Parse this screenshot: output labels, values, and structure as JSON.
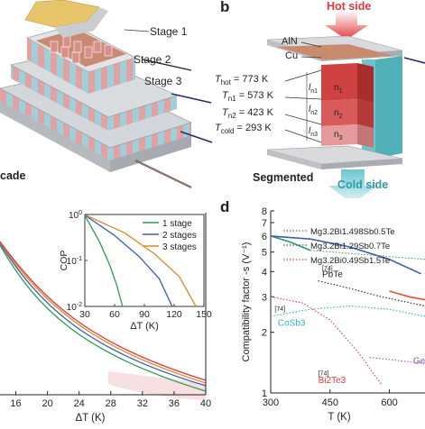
{
  "panel_a": {
    "caption": "cade",
    "stages": [
      "Stage 1",
      "Stage 2",
      "Stage 3"
    ]
  },
  "panel_b": {
    "letter": "b",
    "caption": "Segmented",
    "hot_label": "Hot side",
    "cold_label": "Cold side",
    "layers": [
      "AlN",
      "Cu"
    ],
    "temperatures": [
      {
        "name": "T_hot",
        "value": "773 K"
      },
      {
        "name": "T_n1",
        "value": "573 K"
      },
      {
        "name": "T_n2",
        "value": "423 K"
      },
      {
        "name": "T_cold",
        "value": "293 K"
      }
    ],
    "legs": [
      "n1",
      "n2",
      "n3"
    ],
    "lengths": [
      "l_n1",
      "l_n2",
      "l_n3"
    ]
  },
  "panel_c": {
    "chart_data": {
      "type": "line",
      "xlabel": "ΔT (K)",
      "x_ticks": [
        16,
        20,
        24,
        28,
        32,
        36,
        40
      ],
      "xlim": [
        14,
        40
      ],
      "series": [
        {
          "name": "1 stage",
          "color": "#2e9a57"
        },
        {
          "name": "2 stages",
          "color": "#3c5fb0"
        },
        {
          "name": "3 stages",
          "color": "#d98a24"
        }
      ],
      "inset": {
        "type": "line",
        "xlabel": "ΔT (K)",
        "ylabel": "COP",
        "x_ticks": [
          30,
          60,
          90,
          120,
          150
        ],
        "y_ticks": [
          "10^-2",
          "10^-1",
          "10^0"
        ],
        "ylim_log": [
          0.01,
          1
        ],
        "series": [
          {
            "name": "1 stage",
            "x": [
              30,
              45,
              55,
              62,
              68
            ],
            "y": [
              0.95,
              0.25,
              0.08,
              0.03,
              0.01
            ]
          },
          {
            "name": "2 stages",
            "x": [
              30,
              60,
              85,
              105,
              118
            ],
            "y": [
              0.97,
              0.35,
              0.12,
              0.04,
              0.01
            ]
          },
          {
            "name": "3 stages",
            "x": [
              30,
              70,
              100,
              125,
              142
            ],
            "y": [
              0.98,
              0.4,
              0.14,
              0.045,
              0.01
            ]
          }
        ]
      }
    }
  },
  "panel_d": {
    "letter": "d",
    "chart_data": {
      "type": "line",
      "ylabel": "Compatibility factor -s (V⁻¹)",
      "xlabel": "T (K)",
      "x_ticks": [
        300,
        450,
        600
      ],
      "xlim": [
        300,
        690
      ],
      "y_ticks": [
        1,
        2,
        3,
        4,
        5,
        6,
        7,
        8
      ],
      "ylim_log": [
        1,
        8
      ],
      "legend": [
        "Mg3.2Bi1.498Sb0.5Te",
        "Mg3.2Bi1.29Sb0.7Te",
        "Mg3.2Bi0.49Sb1.5Te"
      ],
      "annotations": [
        "PbTe",
        "CoSb3",
        "Bi2Te3",
        "Ge"
      ],
      "refs": [
        "[74]",
        "[74]",
        "[74]"
      ],
      "series": [
        {
          "name": "Mg3.2Bi1.498Sb0.5Te",
          "color": "#2e9a57",
          "x": [
            300,
            350,
            400
          ],
          "y": [
            6.0,
            5.6,
            5.1
          ]
        },
        {
          "name": "Mg3.2Bi1.29Sb0.7Te",
          "color": "#3c5fb0",
          "x": [
            300,
            400,
            500,
            600,
            680
          ],
          "y": [
            6.0,
            5.8,
            5.3,
            4.6,
            3.9
          ]
        },
        {
          "name": "Mg3.2Bi0.49Sb1.5Te",
          "color": "#e0503a",
          "x": [
            600,
            650,
            690
          ],
          "y": [
            3.2,
            3.0,
            2.9
          ]
        },
        {
          "name": "PbTe",
          "color": "#222222",
          "x": [
            420,
            500,
            580,
            690
          ],
          "y": [
            3.6,
            3.3,
            3.0,
            2.7
          ]
        },
        {
          "name": "CoSb3",
          "color": "#2bb6c4",
          "x": [
            300,
            400,
            500,
            600,
            690
          ],
          "y": [
            2.4,
            2.6,
            2.7,
            2.6,
            2.4
          ]
        },
        {
          "name": "Bi2Te3",
          "color": "#e23a3a",
          "x": [
            300,
            380,
            450,
            520,
            580
          ],
          "y": [
            3.0,
            2.8,
            2.3,
            1.6,
            1.1
          ]
        },
        {
          "name": "Ge",
          "color": "#8c5bb8",
          "x": [
            550,
            620,
            690
          ],
          "y": [
            1.5,
            1.45,
            1.4
          ]
        }
      ]
    }
  }
}
